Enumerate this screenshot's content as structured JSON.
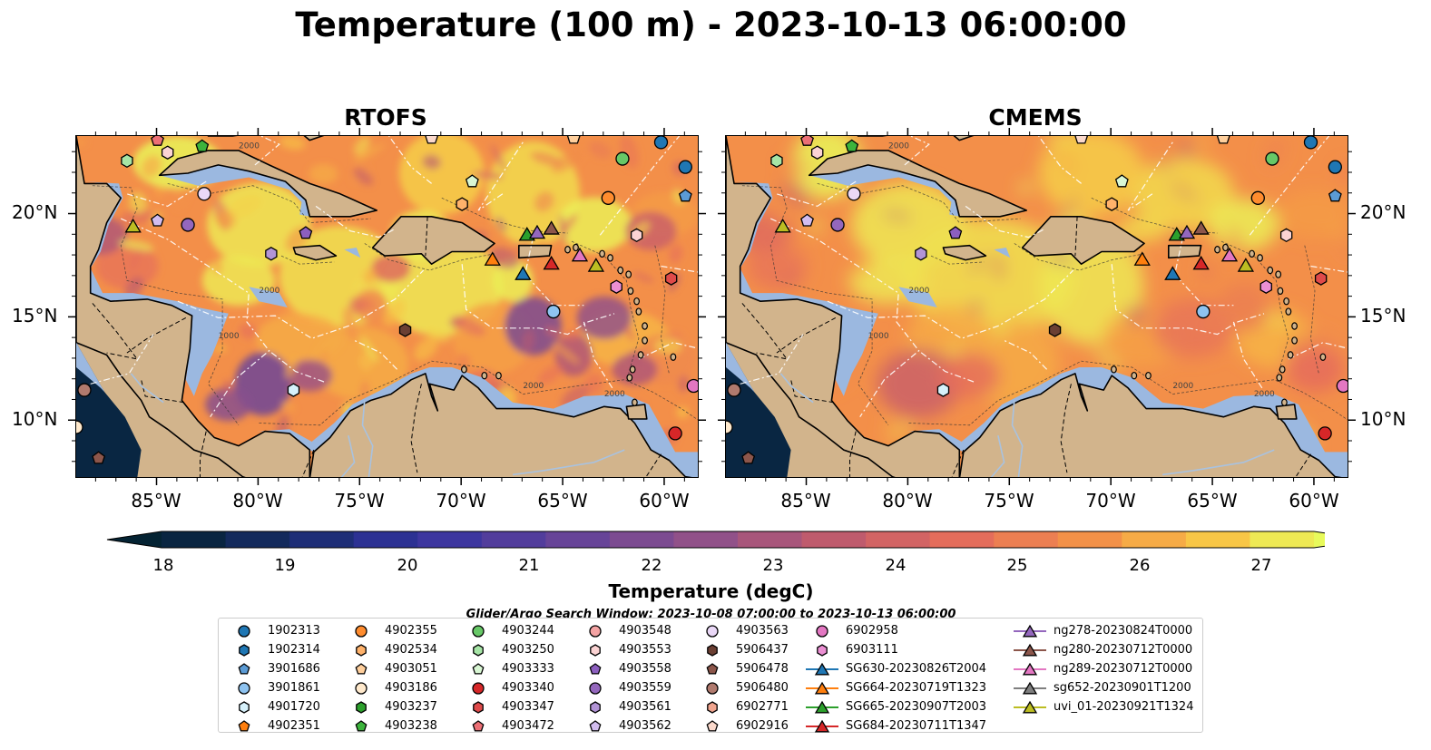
{
  "title": "Temperature (100 m) - 2023-10-13 06:00:00",
  "panels": [
    {
      "name": "RTOFS",
      "variant": "rtofs"
    },
    {
      "name": "CMEMS",
      "variant": "cmems"
    }
  ],
  "axes": {
    "lon_ticks": [
      "85°W",
      "80°W",
      "75°W",
      "70°W",
      "65°W",
      "60°W"
    ],
    "lat_ticks": [
      "20°N",
      "15°N",
      "10°N"
    ],
    "lon_range": [
      -89,
      -58.3
    ],
    "lat_range": [
      7.2,
      23.8
    ]
  },
  "colorbar": {
    "label": "Temperature (degC)",
    "ticks": [
      "18",
      "19",
      "20",
      "21",
      "22",
      "23",
      "24",
      "25",
      "26",
      "27"
    ],
    "range": [
      18,
      27
    ],
    "colormap": "thermal",
    "extend": "both"
  },
  "legend": {
    "title": "Glider/Argo Search Window: 2023-10-08 07:00:00 to 2023-10-13 06:00:00",
    "columns": [
      [
        {
          "label": "1902313",
          "marker": "circle",
          "color": "#1f77b4"
        },
        {
          "label": "1902314",
          "marker": "hexagon",
          "color": "#1f77b4"
        },
        {
          "label": "3901686",
          "marker": "pentagon",
          "color": "#5b9bd5"
        },
        {
          "label": "3901861",
          "marker": "circle",
          "color": "#8ec3f0"
        },
        {
          "label": "4901720",
          "marker": "hexagon",
          "color": "#d6f1fb"
        },
        {
          "label": "4902351",
          "marker": "pentagon",
          "color": "#ff7f0e"
        }
      ],
      [
        {
          "label": "4902355",
          "marker": "circle",
          "color": "#ff8c2e"
        },
        {
          "label": "4902534",
          "marker": "hexagon",
          "color": "#ffb26b"
        },
        {
          "label": "4903051",
          "marker": "pentagon",
          "color": "#ffcf9c"
        },
        {
          "label": "4903186",
          "marker": "circle",
          "color": "#ffe9cc"
        },
        {
          "label": "4903237",
          "marker": "hexagon",
          "color": "#2ca02c"
        },
        {
          "label": "4903238",
          "marker": "pentagon",
          "color": "#3cb43c"
        }
      ],
      [
        {
          "label": "4903244",
          "marker": "circle",
          "color": "#67c867"
        },
        {
          "label": "4903250",
          "marker": "hexagon",
          "color": "#a6e5a6"
        },
        {
          "label": "4903333",
          "marker": "pentagon",
          "color": "#d9f7d4"
        },
        {
          "label": "4903340",
          "marker": "circle",
          "color": "#d62728"
        },
        {
          "label": "4903347",
          "marker": "hexagon",
          "color": "#df4a4a"
        },
        {
          "label": "4903472",
          "marker": "pentagon",
          "color": "#ec6f75"
        }
      ],
      [
        {
          "label": "4903548",
          "marker": "circle",
          "color": "#f4a3a3"
        },
        {
          "label": "4903553",
          "marker": "hexagon",
          "color": "#fbd3d3"
        },
        {
          "label": "4903558",
          "marker": "pentagon",
          "color": "#8c5fbf"
        },
        {
          "label": "4903559",
          "marker": "circle",
          "color": "#9467bd"
        },
        {
          "label": "4903561",
          "marker": "hexagon",
          "color": "#b294d6"
        },
        {
          "label": "4903562",
          "marker": "pentagon",
          "color": "#d2bdef"
        }
      ],
      [
        {
          "label": "4903563",
          "marker": "circle",
          "color": "#ead8f7"
        },
        {
          "label": "5906437",
          "marker": "hexagon",
          "color": "#6b3f33"
        },
        {
          "label": "5906478",
          "marker": "pentagon",
          "color": "#8c564b"
        },
        {
          "label": "5906480",
          "marker": "circle",
          "color": "#b07a6e"
        },
        {
          "label": "6902771",
          "marker": "hexagon",
          "color": "#f1a58f"
        },
        {
          "label": "6902916",
          "marker": "pentagon",
          "color": "#fbd9cc"
        }
      ],
      [
        {
          "label": "6902958",
          "marker": "circle",
          "color": "#e377c2"
        },
        {
          "label": "6903111",
          "marker": "hexagon",
          "color": "#eb8fd3"
        },
        {
          "label": "SG630-20230826T2004",
          "marker": "triangle-line",
          "color": "#1f77b4"
        },
        {
          "label": "SG664-20230719T1323",
          "marker": "triangle-line",
          "color": "#ff7f0e"
        },
        {
          "label": "SG665-20230907T2003",
          "marker": "triangle-line",
          "color": "#2ca02c"
        },
        {
          "label": "SG684-20230711T1347",
          "marker": "triangle-line",
          "color": "#d62728"
        }
      ],
      [
        {
          "label": "ng278-20230824T0000",
          "marker": "triangle-line",
          "color": "#9467bd"
        },
        {
          "label": "ng280-20230712T0000",
          "marker": "triangle-line",
          "color": "#8c564b"
        },
        {
          "label": "ng289-20230712T0000",
          "marker": "triangle-line",
          "color": "#e377c2"
        },
        {
          "label": "sg652-20230901T1200",
          "marker": "triangle-line",
          "color": "#7f7f7f"
        },
        {
          "label": "uvi_01-20230921T1324",
          "marker": "triangle-line",
          "color": "#bcbd22"
        }
      ]
    ]
  },
  "map_markers": [
    {
      "lon": -85.0,
      "lat": 23.6,
      "marker": "pentagon",
      "color": "#ec6f75"
    },
    {
      "lon": -84.5,
      "lat": 23.0,
      "marker": "hexagon",
      "color": "#fbd3d3"
    },
    {
      "lon": -86.5,
      "lat": 22.6,
      "marker": "hexagon",
      "color": "#a6e5a6"
    },
    {
      "lon": -82.8,
      "lat": 23.3,
      "marker": "pentagon",
      "color": "#3cb43c"
    },
    {
      "lon": -82.7,
      "lat": 21.0,
      "marker": "circle",
      "color": "#ead8f7"
    },
    {
      "lon": -86.2,
      "lat": 19.4,
      "marker": "triangle",
      "color": "#bcbd22"
    },
    {
      "lon": -85.0,
      "lat": 19.7,
      "marker": "pentagon",
      "color": "#d2bdef"
    },
    {
      "lon": -83.5,
      "lat": 19.5,
      "marker": "circle",
      "color": "#9467bd"
    },
    {
      "lon": -79.4,
      "lat": 18.1,
      "marker": "hexagon",
      "color": "#b294d6"
    },
    {
      "lon": -77.7,
      "lat": 19.1,
      "marker": "pentagon",
      "color": "#8c5fbf"
    },
    {
      "lon": -71.5,
      "lat": 23.7,
      "marker": "pentagon",
      "color": "#fbd9cc"
    },
    {
      "lon": -69.5,
      "lat": 21.6,
      "marker": "pentagon",
      "color": "#d9f7d4"
    },
    {
      "lon": -70.0,
      "lat": 20.5,
      "marker": "hexagon",
      "color": "#ffb26b"
    },
    {
      "lon": -72.8,
      "lat": 14.4,
      "marker": "hexagon",
      "color": "#6b3f33"
    },
    {
      "lon": -68.5,
      "lat": 17.8,
      "marker": "triangle",
      "color": "#ff7f0e"
    },
    {
      "lon": -67.0,
      "lat": 17.1,
      "marker": "triangle",
      "color": "#1f77b4"
    },
    {
      "lon": -66.8,
      "lat": 19.0,
      "marker": "triangle",
      "color": "#2ca02c"
    },
    {
      "lon": -66.3,
      "lat": 19.1,
      "marker": "triangle",
      "color": "#9467bd"
    },
    {
      "lon": -65.6,
      "lat": 19.3,
      "marker": "triangle",
      "color": "#8c564b"
    },
    {
      "lon": -65.6,
      "lat": 17.6,
      "marker": "triangle",
      "color": "#d62728"
    },
    {
      "lon": -64.2,
      "lat": 18.0,
      "marker": "triangle",
      "color": "#e377c2"
    },
    {
      "lon": -63.4,
      "lat": 17.5,
      "marker": "triangle",
      "color": "#bcbd22"
    },
    {
      "lon": -65.5,
      "lat": 15.3,
      "marker": "circle",
      "color": "#8ec3f0"
    },
    {
      "lon": -64.5,
      "lat": 23.7,
      "marker": "pentagon",
      "color": "#ffcf9c"
    },
    {
      "lon": -62.1,
      "lat": 22.7,
      "marker": "circle",
      "color": "#67c867"
    },
    {
      "lon": -62.8,
      "lat": 20.8,
      "marker": "circle",
      "color": "#ff8c2e"
    },
    {
      "lon": -61.4,
      "lat": 19.0,
      "marker": "hexagon",
      "color": "#fbd3d3"
    },
    {
      "lon": -60.2,
      "lat": 23.5,
      "marker": "circle",
      "color": "#1f77b4"
    },
    {
      "lon": -59.0,
      "lat": 22.3,
      "marker": "circle",
      "color": "#1f77b4"
    },
    {
      "lon": -59.0,
      "lat": 20.9,
      "marker": "pentagon",
      "color": "#5b9bd5"
    },
    {
      "lon": -59.7,
      "lat": 16.9,
      "marker": "hexagon",
      "color": "#df4a4a"
    },
    {
      "lon": -62.4,
      "lat": 16.5,
      "marker": "hexagon",
      "color": "#eb8fd3"
    },
    {
      "lon": -58.6,
      "lat": 11.7,
      "marker": "circle",
      "color": "#e377c2"
    },
    {
      "lon": -59.5,
      "lat": 9.4,
      "marker": "circle",
      "color": "#d62728"
    },
    {
      "lon": -78.3,
      "lat": 11.5,
      "marker": "hexagon",
      "color": "#d6f1fb"
    },
    {
      "lon": -88.6,
      "lat": 11.5,
      "marker": "circle",
      "color": "#b07a6e"
    },
    {
      "lon": -89.0,
      "lat": 9.7,
      "marker": "circle",
      "color": "#ffe9cc"
    },
    {
      "lon": -87.9,
      "lat": 8.2,
      "marker": "pentagon",
      "color": "#8c564b"
    }
  ]
}
